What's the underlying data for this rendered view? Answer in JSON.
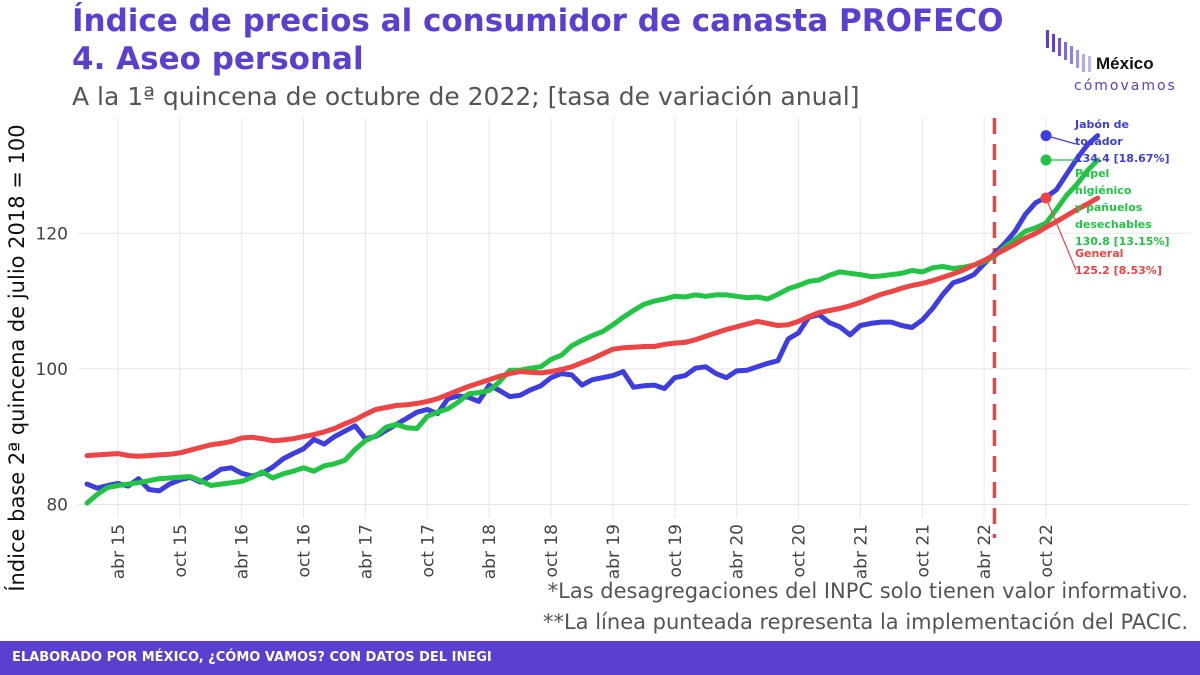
{
  "header": {
    "title_line1": "Índice de precios al consumidor de canasta PROFECO",
    "title_line2": "4. Aseo personal",
    "subtitle": "A la 1ª quincena de octubre de 2022; [tasa de variación anual]"
  },
  "logo": {
    "main": "México",
    "sub": "cómovamos",
    "icon": "bars-logo-icon"
  },
  "notes": {
    "line1": "*Las desagregaciones del INPC solo tienen valor informativo.",
    "line2": "**La línea punteada representa la implementación del PACIC."
  },
  "footer": {
    "text": "ELABORADO POR MÉXICO, ¿CÓMO VAMOS? CON DATOS DEL INEGI"
  },
  "colors": {
    "jabon": "#3d3de0",
    "papel": "#22c444",
    "general": "#ee4444",
    "accent": "#5a3fd0",
    "vline": "#ee4444"
  },
  "chart_data": {
    "type": "line",
    "ylabel": "Índice base 2ª quincena de julio 2018 = 100",
    "xlabel": "",
    "ylim": [
      78,
      137
    ],
    "yticks": [
      80,
      100,
      120
    ],
    "xticks": [
      "abr 15",
      "oct 15",
      "abr 16",
      "oct 16",
      "abr 17",
      "oct 17",
      "abr 18",
      "oct 18",
      "abr 19",
      "oct 19",
      "abr 20",
      "oct 20",
      "abr 21",
      "oct 21",
      "abr 22",
      "oct 22"
    ],
    "x_start": "2015-01",
    "x_end": "2022-10",
    "grid": true,
    "vline": {
      "x": "2022-05"
    },
    "series": [
      {
        "name": "Jabón de tocador",
        "label_lines": [
          "Jabón de",
          "tocador",
          "134.4 [18.67%]"
        ],
        "color_key": "jabon",
        "values": [
          83.0,
          82.4,
          82.8,
          83.1,
          82.7,
          83.8,
          82.2,
          82.0,
          83.0,
          83.6,
          84.0,
          83.3,
          84.2,
          85.2,
          85.4,
          84.6,
          84.2,
          84.6,
          85.5,
          86.7,
          87.5,
          88.2,
          89.6,
          88.9,
          90.0,
          90.8,
          91.6,
          89.7,
          90.0,
          90.9,
          91.8,
          92.7,
          93.6,
          94.0,
          93.4,
          95.6,
          96.0,
          95.8,
          95.2,
          97.6,
          96.8,
          95.9,
          96.1,
          96.9,
          97.5,
          98.7,
          99.3,
          99.1,
          97.6,
          98.4,
          98.7,
          99.0,
          99.6,
          97.3,
          97.5,
          97.6,
          97.1,
          98.7,
          99.0,
          100.1,
          100.3,
          99.3,
          98.7,
          99.7,
          99.8,
          100.3,
          100.8,
          101.2,
          104.4,
          105.3,
          107.6,
          108.0,
          106.8,
          106.2,
          105.0,
          106.4,
          106.7,
          106.9,
          106.9,
          106.4,
          106.1,
          107.2,
          108.9,
          111.0,
          112.7,
          113.2,
          113.9,
          115.5,
          117.0,
          118.5,
          120.3,
          122.8,
          124.5,
          125.3,
          126.4,
          128.7,
          131.0,
          133.0,
          134.4
        ]
      },
      {
        "name": "Papel higiénico y pañuelos desechables",
        "label_lines": [
          "Papel",
          "higiénico",
          "y pañuelos",
          "desechables",
          "130.8 [13.15%]"
        ],
        "color_key": "papel",
        "values": [
          80.2,
          81.5,
          82.5,
          82.8,
          83.0,
          83.2,
          83.5,
          83.8,
          83.9,
          84.0,
          84.1,
          83.5,
          82.8,
          83.0,
          83.2,
          83.4,
          84.0,
          84.8,
          83.9,
          84.5,
          84.9,
          85.4,
          84.9,
          85.7,
          86.0,
          86.5,
          88.1,
          89.4,
          90.1,
          91.4,
          91.8,
          91.3,
          91.2,
          93.0,
          93.6,
          94.1,
          95.1,
          96.3,
          96.5,
          96.8,
          98.1,
          99.8,
          99.8,
          100.1,
          100.3,
          101.4,
          102.0,
          103.4,
          104.2,
          104.9,
          105.5,
          106.5,
          107.6,
          108.6,
          109.5,
          110.0,
          110.3,
          110.7,
          110.6,
          110.9,
          110.7,
          110.9,
          110.9,
          110.7,
          110.5,
          110.6,
          110.3,
          111.0,
          111.8,
          112.3,
          112.9,
          113.1,
          113.8,
          114.3,
          114.1,
          113.9,
          113.6,
          113.7,
          113.9,
          114.1,
          114.5,
          114.3,
          114.9,
          115.1,
          114.8,
          115.0,
          115.3,
          115.8,
          116.6,
          118.0,
          119.1,
          120.3,
          120.8,
          121.5,
          123.5,
          125.6,
          127.2,
          129.2,
          130.8
        ]
      },
      {
        "name": "General",
        "label_lines": [
          "General",
          "125.2 [8.53%]"
        ],
        "color_key": "general",
        "values": [
          87.2,
          87.3,
          87.4,
          87.5,
          87.2,
          87.1,
          87.2,
          87.3,
          87.4,
          87.6,
          88.0,
          88.4,
          88.8,
          89.0,
          89.3,
          89.8,
          89.9,
          89.7,
          89.4,
          89.5,
          89.7,
          90.0,
          90.3,
          90.7,
          91.2,
          91.9,
          92.5,
          93.3,
          94.0,
          94.3,
          94.6,
          94.7,
          94.9,
          95.2,
          95.6,
          96.2,
          96.8,
          97.4,
          97.9,
          98.4,
          98.9,
          99.3,
          99.6,
          99.5,
          99.4,
          99.6,
          99.9,
          100.3,
          100.9,
          101.5,
          102.2,
          102.9,
          103.1,
          103.2,
          103.3,
          103.3,
          103.6,
          103.8,
          103.9,
          104.3,
          104.8,
          105.3,
          105.8,
          106.2,
          106.6,
          107.0,
          106.7,
          106.4,
          106.5,
          107.0,
          107.7,
          108.3,
          108.6,
          108.9,
          109.3,
          109.8,
          110.4,
          111.0,
          111.4,
          111.9,
          112.3,
          112.6,
          113.0,
          113.5,
          114.0,
          114.6,
          115.3,
          116.0,
          116.8,
          117.6,
          118.4,
          119.3,
          120.0,
          120.9,
          121.7,
          122.6,
          123.5,
          124.3,
          125.2
        ]
      }
    ]
  }
}
